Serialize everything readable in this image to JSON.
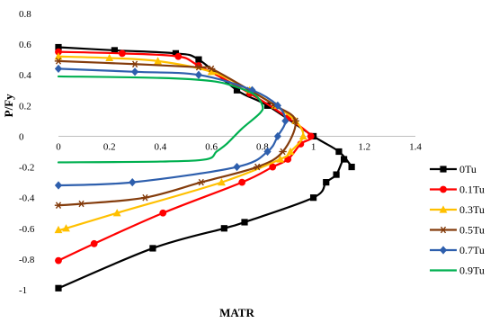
{
  "chart_data": {
    "type": "scatter",
    "title": "",
    "xlabel": "MATR",
    "ylabel": "P/Fy",
    "xlim": [
      0,
      1.4
    ],
    "ylim": [
      -1,
      0.8
    ],
    "xticks": [
      "0",
      "0.2",
      "0.4",
      "0.6",
      "0.8",
      "1",
      "1.2",
      "1.4"
    ],
    "yticks": [
      "-1",
      "-0.8",
      "-0.6",
      "-0.4",
      "-0.2",
      "0",
      "0.2",
      "0.4",
      "0.6",
      "0.8"
    ],
    "grid": false,
    "legend_position": "right",
    "series": [
      {
        "name": "0Tu",
        "color": "#000000",
        "marker": "square",
        "points": [
          [
            0,
            -0.99
          ],
          [
            0.37,
            -0.73
          ],
          [
            0.65,
            -0.6
          ],
          [
            0.73,
            -0.56
          ],
          [
            1.0,
            -0.4
          ],
          [
            1.05,
            -0.3
          ],
          [
            1.09,
            -0.25
          ],
          [
            1.12,
            -0.15
          ],
          [
            1.15,
            -0.2
          ],
          [
            1.1,
            -0.1
          ],
          [
            1.0,
            0
          ],
          [
            0.82,
            0.2
          ],
          [
            0.7,
            0.3
          ],
          [
            0.55,
            0.5
          ],
          [
            0.46,
            0.54
          ],
          [
            0.22,
            0.56
          ],
          [
            0,
            0.58
          ]
        ]
      },
      {
        "name": "0.1Tu",
        "color": "#ff0000",
        "marker": "circle",
        "points": [
          [
            0,
            -0.81
          ],
          [
            0.14,
            -0.7
          ],
          [
            0.41,
            -0.5
          ],
          [
            0.72,
            -0.3
          ],
          [
            0.84,
            -0.2
          ],
          [
            0.9,
            -0.15
          ],
          [
            0.95,
            -0.05
          ],
          [
            0.99,
            0
          ],
          [
            0.9,
            0.12
          ],
          [
            0.75,
            0.28
          ],
          [
            0.55,
            0.46
          ],
          [
            0.47,
            0.52
          ],
          [
            0.25,
            0.54
          ],
          [
            0,
            0.55
          ]
        ]
      },
      {
        "name": "0.3Tu",
        "color": "#ffc000",
        "marker": "triangle",
        "points": [
          [
            0,
            -0.61
          ],
          [
            0.03,
            -0.6
          ],
          [
            0.23,
            -0.5
          ],
          [
            0.64,
            -0.3
          ],
          [
            0.87,
            -0.15
          ],
          [
            0.91,
            -0.1
          ],
          [
            0.96,
            0
          ],
          [
            0.93,
            0.1
          ],
          [
            0.85,
            0.2
          ],
          [
            0.75,
            0.3
          ],
          [
            0.6,
            0.42
          ],
          [
            0.39,
            0.49
          ],
          [
            0.2,
            0.51
          ],
          [
            0,
            0.52
          ]
        ]
      },
      {
        "name": "0.5Tu",
        "color": "#843c0c",
        "marker": "asterisk",
        "points": [
          [
            0,
            -0.45
          ],
          [
            0.09,
            -0.44
          ],
          [
            0.34,
            -0.4
          ],
          [
            0.56,
            -0.3
          ],
          [
            0.78,
            -0.2
          ],
          [
            0.88,
            -0.1
          ],
          [
            0.93,
            0.1
          ],
          [
            0.85,
            0.2
          ],
          [
            0.75,
            0.3
          ],
          [
            0.6,
            0.44
          ],
          [
            0.55,
            0.45
          ],
          [
            0.3,
            0.47
          ],
          [
            0,
            0.49
          ]
        ]
      },
      {
        "name": "0.7Tu",
        "color": "#2e5fad",
        "marker": "diamond",
        "points": [
          [
            0,
            -0.32
          ],
          [
            0.29,
            -0.3
          ],
          [
            0.7,
            -0.2
          ],
          [
            0.82,
            -0.1
          ],
          [
            0.86,
            0
          ],
          [
            0.89,
            0.1
          ],
          [
            0.86,
            0.2
          ],
          [
            0.76,
            0.3
          ],
          [
            0.55,
            0.4
          ],
          [
            0.3,
            0.42
          ],
          [
            0,
            0.44
          ]
        ]
      },
      {
        "name": "0.9Tu",
        "color": "#00b050",
        "marker": "none",
        "points": [
          [
            0,
            -0.17
          ],
          [
            0.4,
            -0.165
          ],
          [
            0.58,
            -0.15
          ],
          [
            0.62,
            -0.1
          ],
          [
            0.66,
            -0.05
          ],
          [
            0.72,
            0.05
          ],
          [
            0.79,
            0.15
          ],
          [
            0.8,
            0.2
          ],
          [
            0.77,
            0.27
          ],
          [
            0.7,
            0.32
          ],
          [
            0.6,
            0.36
          ],
          [
            0.4,
            0.38
          ],
          [
            0,
            0.39
          ]
        ]
      }
    ]
  }
}
